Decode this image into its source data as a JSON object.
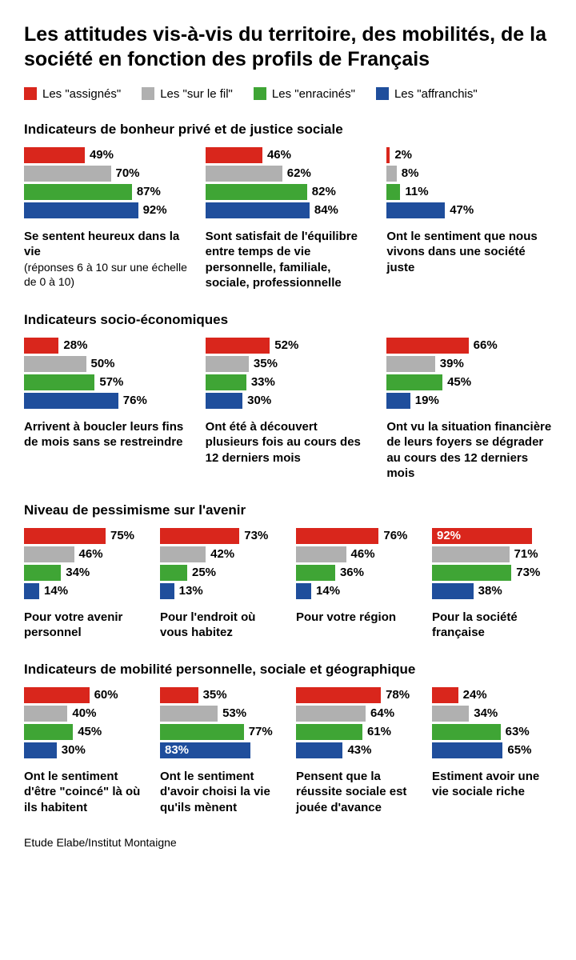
{
  "title": "Les attitudes vis-à-vis du territoire, des mobilités, de la société en fonction des profils de Français",
  "colors": {
    "assignes": "#d9261c",
    "surlefil": "#b0b0b0",
    "enracines": "#3fa535",
    "affranchis": "#1f4e9c"
  },
  "legend": [
    {
      "key": "assignes",
      "label": "Les \"assignés\""
    },
    {
      "key": "surlefil",
      "label": "Les \"sur le fil\""
    },
    {
      "key": "enracines",
      "label": "Les \"enracinés\""
    },
    {
      "key": "affranchis",
      "label": "Les \"affranchis\""
    }
  ],
  "sections": [
    {
      "title": "Indicateurs de bonheur privé et de justice sociale",
      "cols": 3,
      "charts": [
        {
          "v": [
            49,
            70,
            87,
            92
          ],
          "caption": "Se sentent heureux dans la vie",
          "sub": "(réponses 6 à 10 sur une échelle de 0 à 10)"
        },
        {
          "v": [
            46,
            62,
            82,
            84
          ],
          "caption": "Sont satisfait de l'équilibre entre temps de vie personnelle, familiale, sociale, professionnelle"
        },
        {
          "v": [
            2,
            8,
            11,
            47
          ],
          "caption": "Ont le sentiment que nous vivons dans une société juste"
        }
      ]
    },
    {
      "title": "Indicateurs socio-économiques",
      "cols": 3,
      "charts": [
        {
          "v": [
            28,
            50,
            57,
            76
          ],
          "caption": "Arrivent à boucler leurs fins de mois sans se restreindre"
        },
        {
          "v": [
            52,
            35,
            33,
            30
          ],
          "caption": "Ont été à découvert plusieurs fois au cours des 12 derniers mois"
        },
        {
          "v": [
            66,
            39,
            45,
            19
          ],
          "caption": "Ont vu la situation financière de leurs foyers se dégrader au cours des 12 derniers mois"
        }
      ]
    },
    {
      "title": "Niveau de pessimisme sur l'avenir",
      "cols": 4,
      "charts": [
        {
          "v": [
            75,
            46,
            34,
            14
          ],
          "caption": "Pour votre avenir personnel"
        },
        {
          "v": [
            73,
            42,
            25,
            13
          ],
          "caption": "Pour l'endroit où vous habitez"
        },
        {
          "v": [
            76,
            46,
            36,
            14
          ],
          "caption": "Pour votre région"
        },
        {
          "v": [
            92,
            71,
            73,
            38
          ],
          "caption": "Pour la société française"
        }
      ]
    },
    {
      "title": "Indicateurs de mobilité personnelle, sociale et géographique",
      "cols": 4,
      "charts": [
        {
          "v": [
            60,
            40,
            45,
            30
          ],
          "caption": "Ont le sentiment d'être \"coincé\" là où ils habitent"
        },
        {
          "v": [
            35,
            53,
            77,
            83
          ],
          "caption": "Ont le sentiment d'avoir choisi la vie qu'ils mènent"
        },
        {
          "v": [
            78,
            64,
            61,
            43
          ],
          "caption": "Pensent que la réussite sociale est jouée d'avance"
        },
        {
          "v": [
            24,
            34,
            63,
            65
          ],
          "caption": "Estiment avoir une vie sociale riche"
        }
      ]
    }
  ],
  "footer": "Etude Elabe/Institut Montaigne",
  "bar_label_color": "#000000",
  "bar_label_color_inside": "#ffffff",
  "scale_pct_3col": 1.55,
  "scale_pct_4col": 1.36
}
